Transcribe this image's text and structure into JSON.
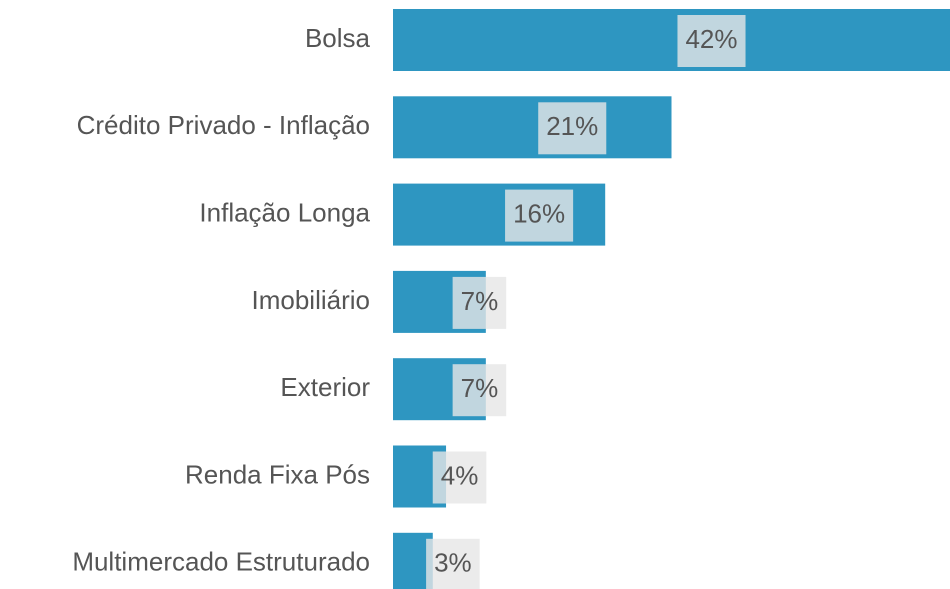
{
  "chart_data": {
    "type": "hbar",
    "categories": [
      "Bolsa",
      "Crédito Privado - Inflação",
      "Inflação Longa",
      "Imobiliário",
      "Exterior",
      "Renda Fixa Pós",
      "Multimercado Estruturado"
    ],
    "values": [
      42,
      21,
      16,
      7,
      7,
      4,
      3
    ],
    "value_labels": [
      "42%",
      "21%",
      "16%",
      "7%",
      "7%",
      "4%",
      "3%"
    ],
    "color": "#2e96c1",
    "xlim": [
      0,
      42
    ]
  }
}
